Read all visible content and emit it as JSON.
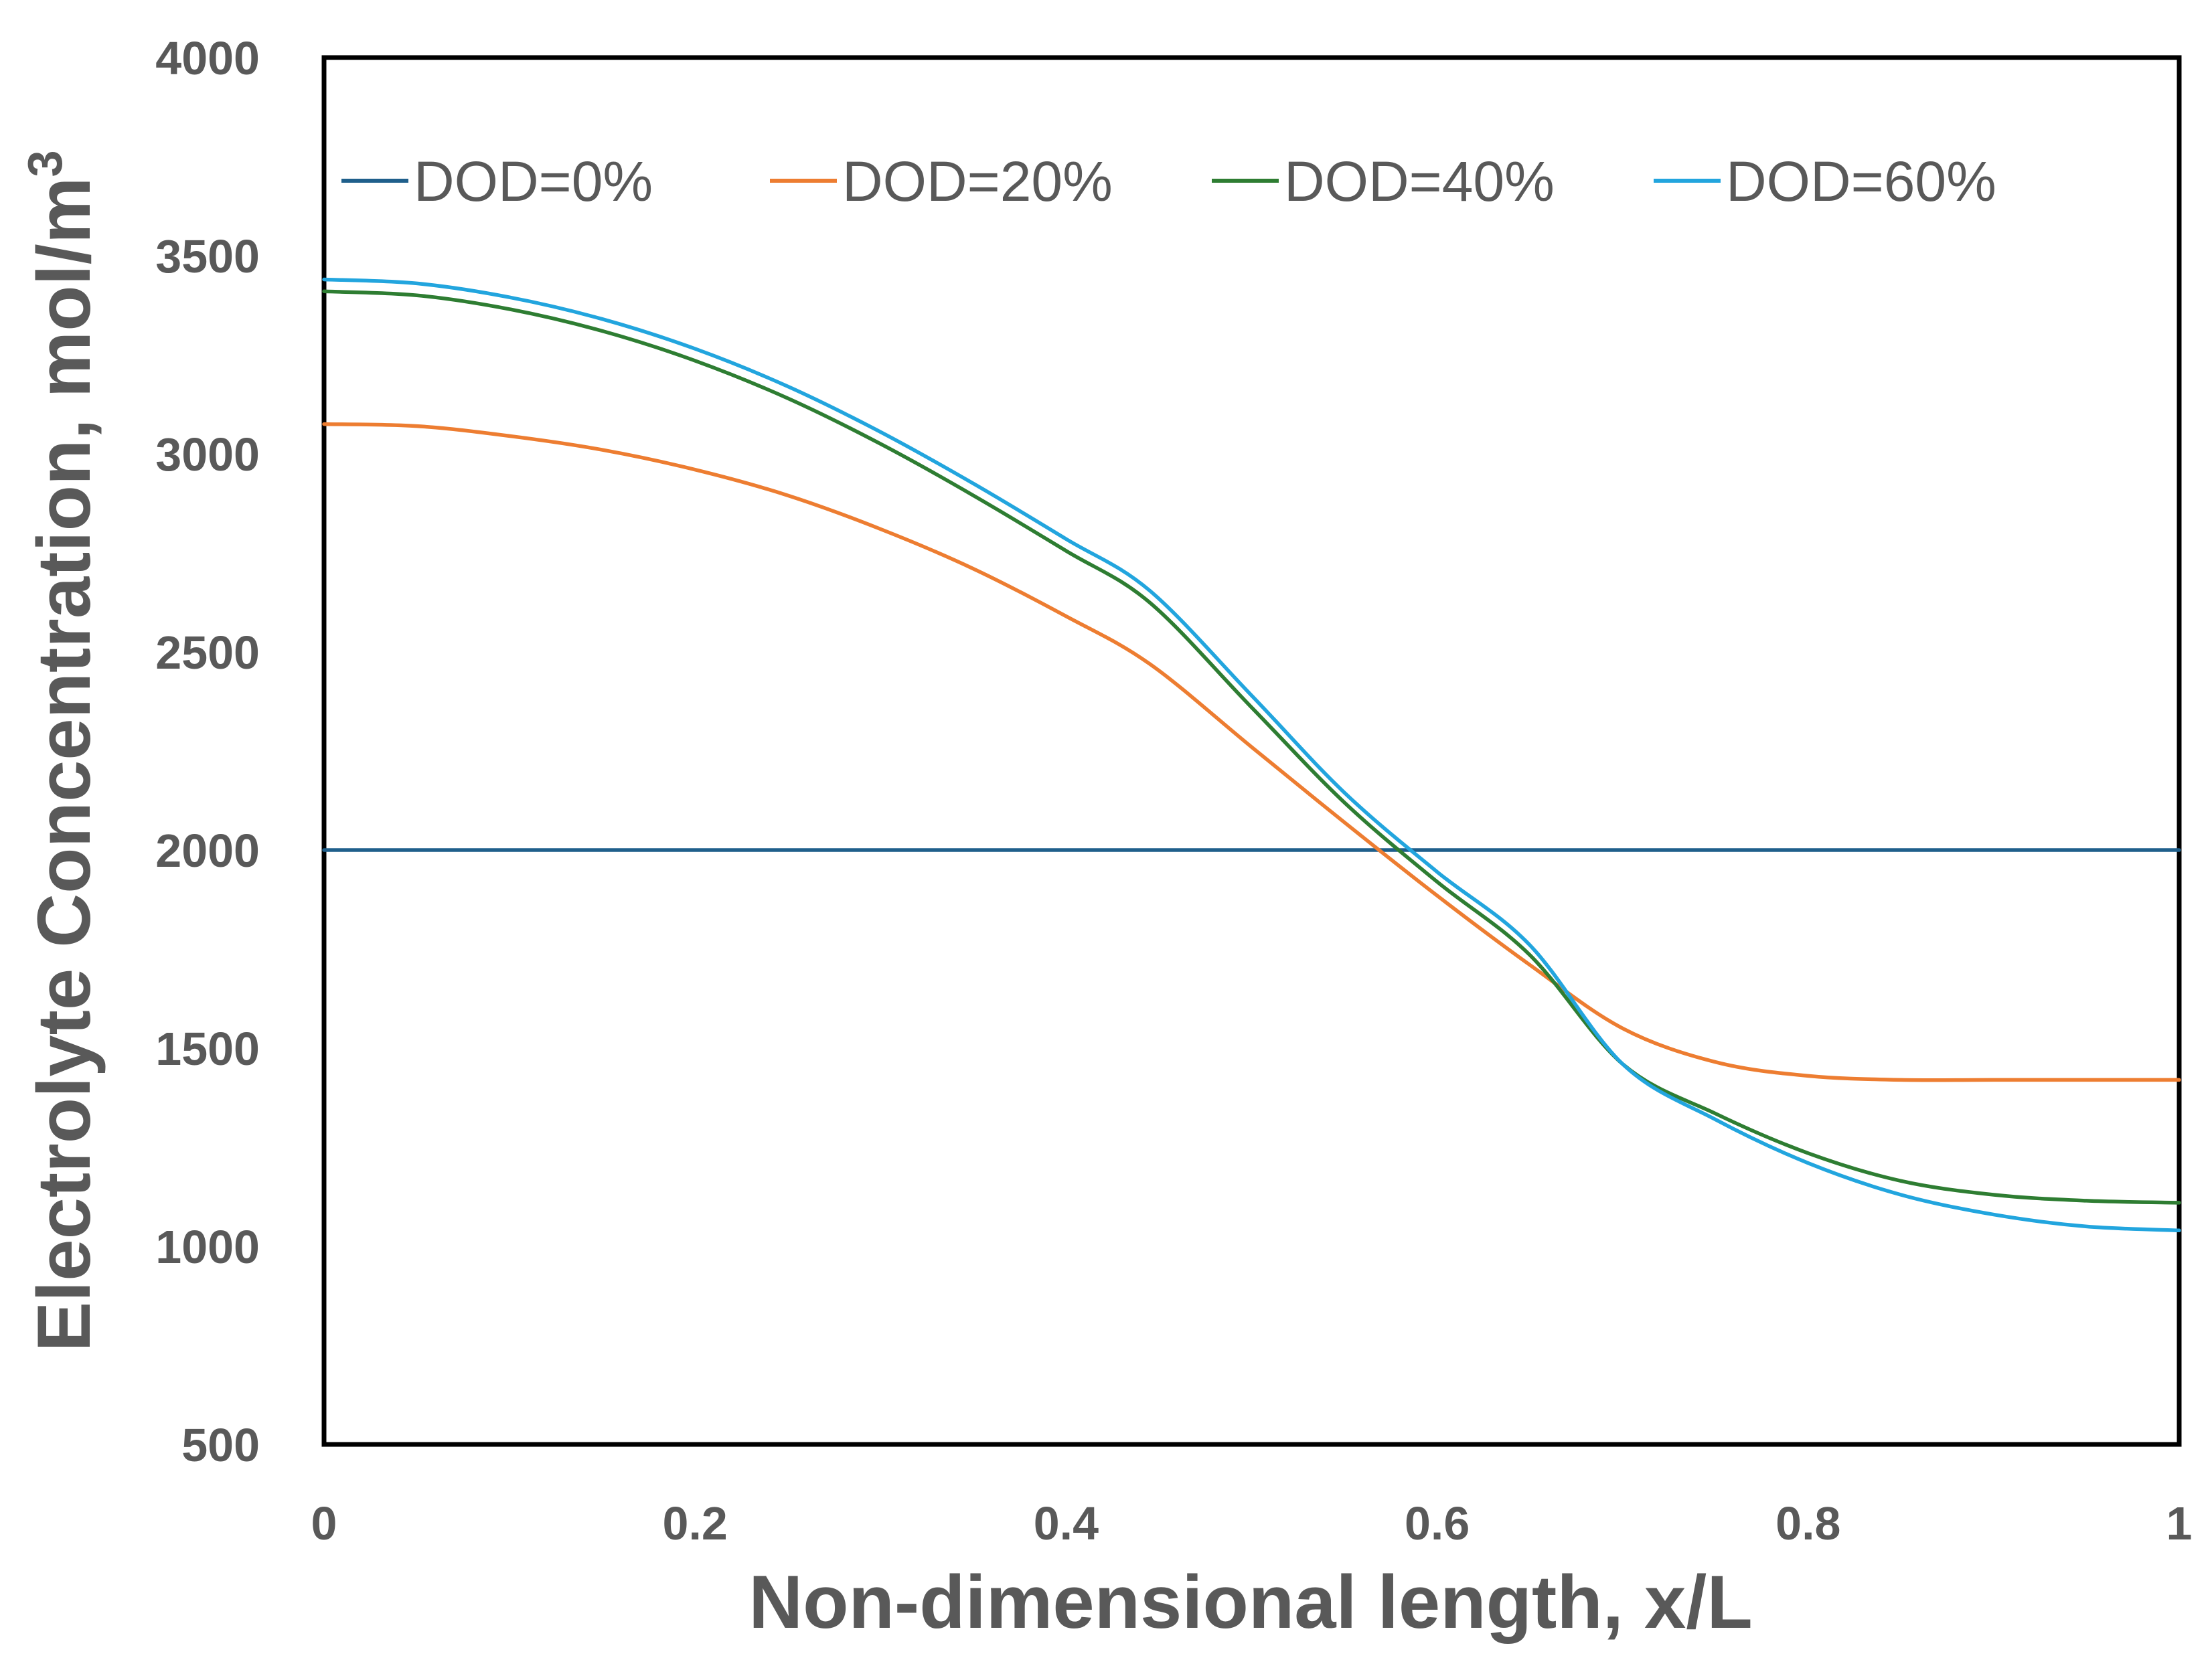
{
  "chart_data": {
    "type": "line",
    "title": "",
    "xlabel": "Non-dimensional length, x/L",
    "ylabel_main": "Electrolyte Concentration, mol/m",
    "ylabel_sup": "3",
    "xlim": [
      0,
      1
    ],
    "ylim": [
      500,
      4000
    ],
    "x_ticks": [
      0,
      0.2,
      0.4,
      0.6,
      0.8,
      1
    ],
    "x_tick_labels": [
      "0",
      "0.2",
      "0.4",
      "0.6",
      "0.8",
      "1"
    ],
    "y_ticks": [
      500,
      1000,
      1500,
      2000,
      2500,
      3000,
      3500,
      4000
    ],
    "y_tick_labels": [
      "500",
      "1000",
      "1500",
      "2000",
      "2500",
      "3000",
      "3500",
      "4000"
    ],
    "grid": false,
    "legend_position": "top",
    "x": [
      0,
      0.05,
      0.1,
      0.15,
      0.2,
      0.25,
      0.3,
      0.35,
      0.4,
      0.445,
      0.5,
      0.55,
      0.6,
      0.65,
      0.7,
      0.75,
      0.8,
      0.85,
      0.9,
      0.95,
      1.0
    ],
    "series": [
      {
        "name": "DOD=0%",
        "color": "#1f5f8b",
        "values": [
          2000,
          2000,
          2000,
          2000,
          2000,
          2000,
          2000,
          2000,
          2000,
          2000,
          2000,
          2000,
          2000,
          2000,
          2000,
          2000,
          2000,
          2000,
          2000,
          2000,
          2000
        ]
      },
      {
        "name": "DOD=20%",
        "color": "#ed7d31",
        "values": [
          3075,
          3070,
          3045,
          3010,
          2960,
          2895,
          2810,
          2710,
          2590,
          2470,
          2260,
          2070,
          1885,
          1710,
          1550,
          1465,
          1430,
          1420,
          1420,
          1420,
          1420
        ]
      },
      {
        "name": "DOD=40%",
        "color": "#2e7d32",
        "values": [
          3410,
          3400,
          3365,
          3310,
          3235,
          3140,
          3025,
          2895,
          2755,
          2625,
          2360,
          2120,
          1920,
          1735,
          1460,
          1335,
          1235,
          1165,
          1130,
          1115,
          1110
        ]
      },
      {
        "name": "DOD=60%",
        "color": "#22a5de",
        "values": [
          3440,
          3430,
          3395,
          3340,
          3265,
          3170,
          3055,
          2925,
          2785,
          2655,
          2390,
          2145,
          1945,
          1760,
          1460,
          1320,
          1210,
          1130,
          1080,
          1050,
          1040
        ]
      }
    ]
  }
}
